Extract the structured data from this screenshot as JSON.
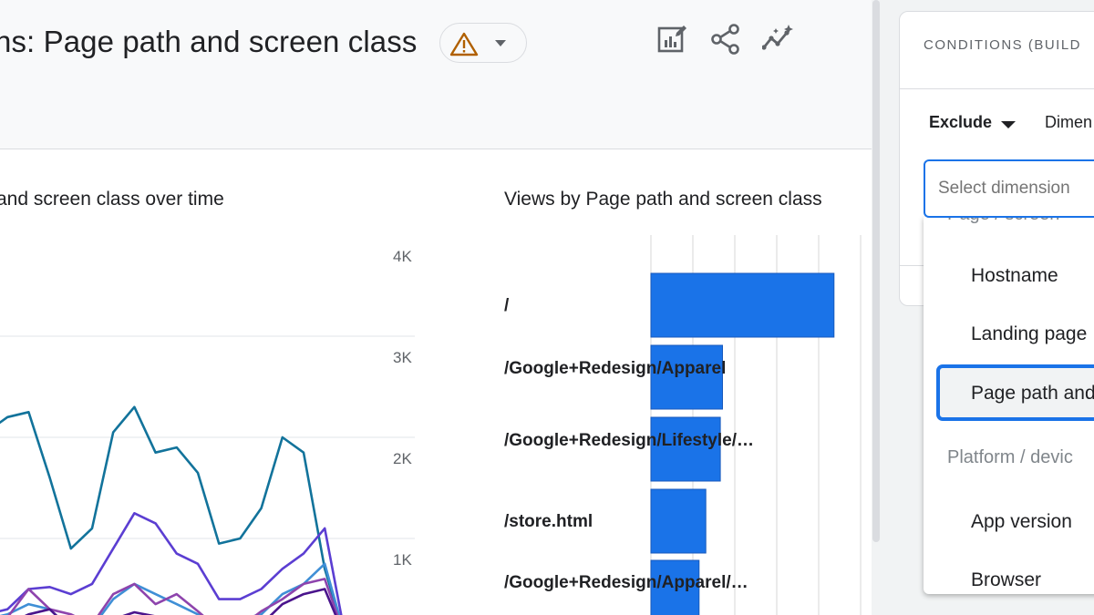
{
  "header": {
    "title": "ns: Page path and screen class",
    "warning_icon": "warning-triangle-icon",
    "tools": [
      {
        "name": "customize-report-icon"
      },
      {
        "name": "share-icon"
      },
      {
        "name": "insights-icon"
      }
    ]
  },
  "line_chart": {
    "title": "and screen class over time",
    "y_ticks": [
      "4K",
      "3K",
      "2K",
      "1K"
    ]
  },
  "bar_chart": {
    "title": "Views by Page path and screen class",
    "labels": [
      "/",
      "/Google+Redesign/Apparel",
      "/Google+Redesign/Lifestyle/…",
      "/store.html",
      "/Google+Redesign/Apparel/…"
    ]
  },
  "chart_data": [
    {
      "type": "line",
      "title": "",
      "xlabel": "",
      "ylabel": "",
      "ylim": [
        0,
        4000
      ],
      "y_ticks": [
        "4K",
        "3K",
        "2K",
        "1K"
      ],
      "x": [
        0,
        1,
        2,
        3,
        4,
        5,
        6,
        7,
        8,
        9,
        10,
        11,
        12,
        13,
        14,
        15,
        16,
        17
      ],
      "series": [
        {
          "color": "#12739b",
          "values": [
            2050,
            2200,
            2250,
            1600,
            900,
            1100,
            2050,
            2300,
            1850,
            1900,
            1650,
            950,
            1000,
            1300,
            2000,
            1850,
            700,
            0
          ]
        },
        {
          "color": "#5b3ed2",
          "values": [
            250,
            300,
            500,
            520,
            450,
            550,
            900,
            1250,
            1150,
            850,
            750,
            400,
            400,
            500,
            700,
            850,
            1100,
            0
          ]
        },
        {
          "color": "#3f8fd6",
          "values": [
            200,
            250,
            350,
            300,
            100,
            120,
            400,
            550,
            450,
            350,
            250,
            150,
            200,
            250,
            450,
            550,
            750,
            0
          ]
        },
        {
          "color": "#8e44ad",
          "values": [
            150,
            220,
            500,
            300,
            250,
            150,
            450,
            550,
            350,
            450,
            280,
            100,
            120,
            280,
            400,
            550,
            600,
            0
          ]
        },
        {
          "color": "#4a148c",
          "values": [
            100,
            150,
            250,
            300,
            100,
            100,
            200,
            270,
            230,
            200,
            150,
            50,
            60,
            150,
            350,
            450,
            500,
            0
          ]
        }
      ]
    },
    {
      "type": "bar",
      "title": "",
      "categories": [
        "/",
        "/Google+Redesign/Apparel",
        "/Google+Redesign/Lifestyle/…",
        "/store.html",
        "/Google+Redesign/Apparel/…"
      ],
      "values": [
        4300,
        1680,
        1630,
        1290,
        1130
      ],
      "color": "#1a73e8"
    }
  ],
  "side_panel": {
    "conditions_title": "CONDITIONS (BUILD",
    "exclude_label": "Exclude",
    "dimension_label": "Dimen",
    "select_placeholder": "Select dimension",
    "dropdown": {
      "group_top": "Page / screen",
      "items": [
        "Hostname",
        "Landing page",
        "Page path and"
      ],
      "group_2": "Platform / devic",
      "items_2": [
        "App version",
        "Browser"
      ]
    }
  }
}
